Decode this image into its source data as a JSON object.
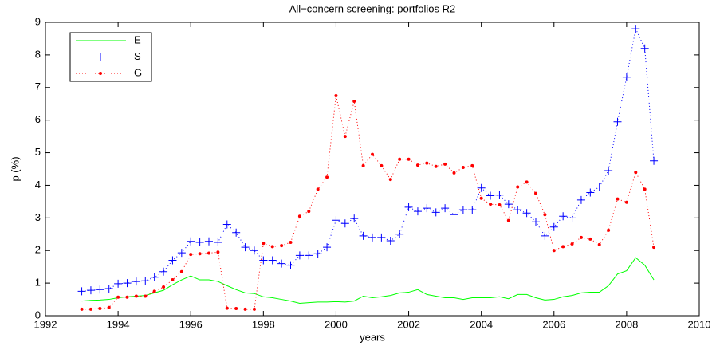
{
  "chart_data": {
    "type": "line",
    "title": "All−concern screening: portfolios R2",
    "xlabel": "years",
    "ylabel": "p (%)",
    "x": [
      1993,
      1993.25,
      1993.5,
      1993.75,
      1994,
      1994.25,
      1994.5,
      1994.75,
      1995,
      1995.25,
      1995.5,
      1995.75,
      1996,
      1996.25,
      1996.5,
      1996.75,
      1997,
      1997.25,
      1997.5,
      1997.75,
      1998,
      1998.25,
      1998.5,
      1998.75,
      1999,
      1999.25,
      1999.5,
      1999.75,
      2000,
      2000.25,
      2000.5,
      2000.75,
      2001,
      2001.25,
      2001.5,
      2001.75,
      2002,
      2002.25,
      2002.5,
      2002.75,
      2003,
      2003.25,
      2003.5,
      2003.75,
      2004,
      2004.25,
      2004.5,
      2004.75,
      2005,
      2005.25,
      2005.5,
      2005.75,
      2006,
      2006.25,
      2006.5,
      2006.75,
      2007,
      2007.25,
      2007.5,
      2007.75,
      2008,
      2008.25,
      2008.5,
      2008.75
    ],
    "series": [
      {
        "name": "E",
        "color": "#00ff00",
        "style": "solid",
        "marker": "none",
        "values": [
          0.45,
          0.47,
          0.48,
          0.5,
          0.55,
          0.58,
          0.6,
          0.62,
          0.7,
          0.78,
          0.95,
          1.1,
          1.22,
          1.1,
          1.1,
          1.05,
          0.92,
          0.8,
          0.7,
          0.68,
          0.58,
          0.55,
          0.5,
          0.45,
          0.38,
          0.4,
          0.42,
          0.42,
          0.43,
          0.42,
          0.45,
          0.6,
          0.55,
          0.58,
          0.62,
          0.7,
          0.72,
          0.8,
          0.65,
          0.6,
          0.55,
          0.55,
          0.5,
          0.55,
          0.55,
          0.55,
          0.58,
          0.52,
          0.65,
          0.65,
          0.55,
          0.48,
          0.5,
          0.58,
          0.62,
          0.7,
          0.72,
          0.72,
          0.92,
          1.28,
          1.38,
          1.78,
          1.55,
          1.1
        ]
      },
      {
        "name": "S",
        "color": "#0000ff",
        "style": "dotted",
        "marker": "plus",
        "values": [
          0.75,
          0.78,
          0.8,
          0.83,
          0.98,
          1.0,
          1.05,
          1.07,
          1.18,
          1.35,
          1.7,
          1.93,
          2.28,
          2.25,
          2.28,
          2.25,
          2.8,
          2.55,
          2.1,
          2.0,
          1.7,
          1.7,
          1.6,
          1.55,
          1.85,
          1.85,
          1.9,
          2.1,
          2.93,
          2.83,
          2.98,
          2.45,
          2.4,
          2.4,
          2.3,
          2.5,
          3.33,
          3.2,
          3.3,
          3.17,
          3.3,
          3.1,
          3.25,
          3.25,
          3.92,
          3.68,
          3.7,
          3.42,
          3.25,
          3.15,
          2.88,
          2.45,
          2.72,
          3.05,
          3.0,
          3.55,
          3.78,
          3.95,
          4.45,
          5.95,
          7.32,
          8.8,
          8.2,
          4.75
        ]
      },
      {
        "name": "G",
        "color": "#ff0000",
        "style": "dotted",
        "marker": "dot",
        "values": [
          0.2,
          0.2,
          0.22,
          0.25,
          0.57,
          0.57,
          0.6,
          0.6,
          0.75,
          0.88,
          1.1,
          1.35,
          1.88,
          1.9,
          1.92,
          1.95,
          0.23,
          0.22,
          0.2,
          0.2,
          2.22,
          2.12,
          2.15,
          2.25,
          3.05,
          3.2,
          3.88,
          4.25,
          6.75,
          5.5,
          6.58,
          4.6,
          4.95,
          4.6,
          4.18,
          4.8,
          4.8,
          4.62,
          4.68,
          4.58,
          4.65,
          4.38,
          4.55,
          4.6,
          3.6,
          3.42,
          3.4,
          2.92,
          3.95,
          4.1,
          3.75,
          3.1,
          2.0,
          2.12,
          2.2,
          2.4,
          2.35,
          2.18,
          2.62,
          3.58,
          3.48,
          4.4,
          3.88,
          2.1
        ]
      }
    ],
    "xlim": [
      1992,
      2010
    ],
    "xticks": [
      1992,
      1994,
      1996,
      1998,
      2000,
      2002,
      2004,
      2006,
      2008,
      2010
    ],
    "ylim": [
      0,
      9
    ],
    "yticks": [
      0,
      1,
      2,
      3,
      4,
      5,
      6,
      7,
      8,
      9
    ],
    "legend": "upper left"
  }
}
